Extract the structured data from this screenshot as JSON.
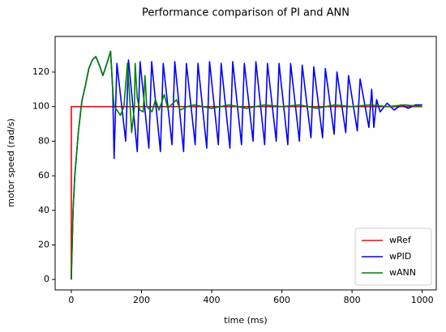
{
  "chart_data": {
    "type": "line",
    "title": "Performance comparison of PI and ANN",
    "xlabel": "time (ms)",
    "ylabel": "motor speed (rad/s)",
    "xlim": [
      -46,
      1040
    ],
    "xticks": [
      0,
      200,
      400,
      600,
      800,
      1000
    ],
    "ylim": [
      -6,
      140.6
    ],
    "yticks": [
      0,
      20,
      40,
      60,
      80,
      100,
      120
    ],
    "grid": false,
    "legend": "lower right",
    "series": [
      {
        "name": "wRef",
        "color": "#ff0000",
        "x": [
          0,
          0,
          1000
        ],
        "values": [
          0,
          100,
          100
        ]
      },
      {
        "name": "wPID",
        "color": "#0000ff",
        "x": [
          0,
          5,
          10,
          20,
          30,
          40,
          50,
          60,
          70,
          80,
          90,
          100,
          112,
          118,
          122,
          130,
          155,
          163,
          188,
          196,
          221,
          229,
          254,
          262,
          287,
          295,
          320,
          328,
          353,
          361,
          386,
          394,
          419,
          427,
          452,
          460,
          485,
          493,
          518,
          526,
          551,
          559,
          584,
          592,
          617,
          625,
          650,
          658,
          683,
          691,
          716,
          724,
          749,
          757,
          782,
          790,
          815,
          823,
          848,
          856,
          862,
          870,
          880,
          900,
          920,
          940,
          960,
          980,
          1000
        ],
        "values": [
          0,
          40,
          60,
          85,
          103,
          112,
          122,
          127,
          129,
          124,
          118,
          124,
          132,
          110,
          70,
          125,
          80,
          127,
          74,
          126,
          76,
          126,
          74,
          125,
          78,
          126,
          74,
          125,
          78,
          125,
          76,
          126,
          78,
          125,
          76,
          126,
          78,
          125,
          80,
          126,
          78,
          125,
          80,
          125,
          78,
          125,
          80,
          124,
          82,
          123,
          82,
          122,
          84,
          120,
          85,
          118,
          86,
          116,
          88,
          110,
          88,
          104,
          97,
          102,
          98,
          101,
          99,
          101,
          101
        ]
      },
      {
        "name": "wANN",
        "color": "#008000",
        "x": [
          0,
          5,
          10,
          20,
          30,
          40,
          50,
          60,
          70,
          80,
          90,
          100,
          112,
          118,
          122,
          130,
          140,
          150,
          160,
          165,
          172,
          180,
          182,
          188,
          195,
          205,
          210,
          215,
          230,
          240,
          250,
          265,
          275,
          290,
          300,
          310,
          330,
          350,
          400,
          450,
          500,
          550,
          600,
          650,
          700,
          750,
          800,
          850,
          900,
          950,
          1000
        ],
        "values": [
          0,
          40,
          60,
          85,
          103,
          112,
          122,
          127,
          129,
          124,
          118,
          124,
          132,
          110,
          100,
          98,
          95,
          100,
          125,
          110,
          85,
          100,
          125,
          105,
          98,
          97,
          118,
          100,
          97,
          104,
          98,
          107,
          99,
          102,
          104,
          98,
          100,
          101,
          99,
          101,
          99,
          101,
          100,
          101,
          99,
          101,
          100,
          101,
          100,
          101,
          100
        ]
      }
    ]
  }
}
